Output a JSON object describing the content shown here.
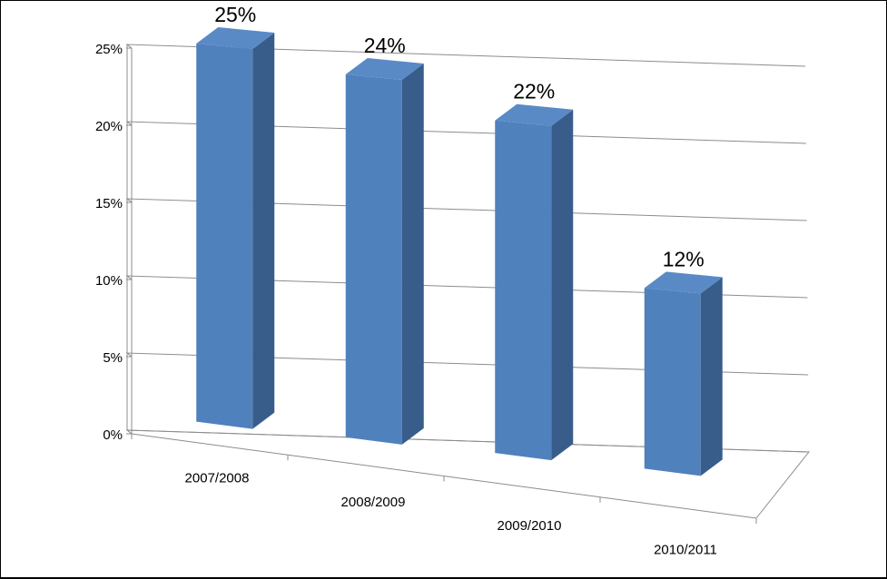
{
  "chart_data": {
    "type": "bar",
    "categories": [
      "2007/2008",
      "2008/2009",
      "2009/2010",
      "2010/2011"
    ],
    "values": [
      25,
      24,
      22,
      12
    ],
    "data_labels": [
      "25%",
      "24%",
      "22%",
      "12%"
    ],
    "y_ticks": [
      0,
      5,
      10,
      15,
      20,
      25
    ],
    "y_tick_labels": [
      "0%",
      "5%",
      "10%",
      "15%",
      "20%",
      "25%"
    ],
    "ylim": [
      0,
      25
    ],
    "title": "",
    "xlabel": "",
    "ylabel": "",
    "grid": true,
    "legend": "none",
    "style": "3d-column",
    "colors": {
      "front": "#4f81bd",
      "side": "#385d8a",
      "top": "#5a8ac6"
    }
  }
}
